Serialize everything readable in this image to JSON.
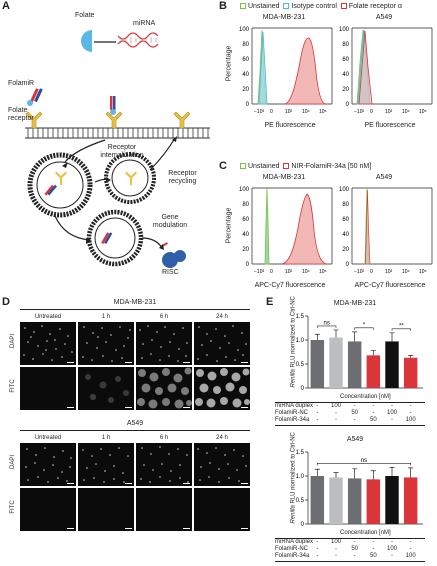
{
  "panels": {
    "A": {
      "label": "A",
      "folate": "Folate",
      "mirna": "miRNA",
      "folamir": "FolamiR",
      "folate_receptor_line1": "Folate",
      "folate_receptor_line2": "receptor",
      "internalization_line1": "Receptor",
      "internalization_line2": "internalization",
      "recycling_line1": "Receptor",
      "recycling_line2": "recycling",
      "gene_line1": "Gene",
      "gene_line2": "modulation",
      "risc": "RISC"
    },
    "B": {
      "label": "B",
      "legend": [
        "Unstained",
        "Isotype control",
        "Folate receptor α"
      ],
      "legend_colors": [
        "#7cc242",
        "#46b7e6",
        "#d9353b"
      ],
      "titles": [
        "MDA-MB-231",
        "A549"
      ],
      "ylabel": "Percentage",
      "xlabel": "PE fluorescence",
      "yticks": [
        "0",
        "20",
        "40",
        "60",
        "80",
        "100"
      ],
      "xticks": [
        "−10³",
        "0",
        "10³",
        "10⁴",
        "10⁵"
      ]
    },
    "C": {
      "label": "C",
      "legend": [
        "Unstained",
        "NIR-FolamiR-34a [50 nM]"
      ],
      "legend_colors": [
        "#7cc242",
        "#d9353b"
      ],
      "titles": [
        "MDA-MB-231",
        "A549"
      ],
      "ylabel": "Percentage",
      "xlabel": "APC-Cy7 fluorescence",
      "yticks": [
        "0",
        "20",
        "40",
        "60",
        "80",
        "100"
      ],
      "xticks": [
        "−10³",
        "0",
        "10³",
        "10⁴",
        "10⁵"
      ]
    },
    "D": {
      "label": "D",
      "grids": [
        {
          "title": "MDA-MB-231",
          "columns": [
            "Untreated",
            "1 h",
            "6 h",
            "24 h"
          ],
          "rows": [
            "DAPI",
            "FITC"
          ]
        },
        {
          "title": "A549",
          "columns": [
            "Untreated",
            "1 h",
            "6 h",
            "24 h"
          ],
          "rows": [
            "DAPI",
            "FITC"
          ]
        }
      ]
    },
    "E": {
      "label": "E",
      "ylabel_italic": "Renilla",
      "ylabel_rest": " RLU normalized to Ctrl-NC",
      "xlabel": "Concentration [nM]",
      "row_labels": [
        "miRNA duplex",
        "FolamiR-NC",
        "FolamiR-34a"
      ],
      "charts": [
        {
          "title": "MDA-MB-231",
          "ylim": [
            0,
            1.5
          ],
          "yticks": [
            "0",
            "0.5",
            "1.0",
            "1.5"
          ],
          "values": [
            1.0,
            1.05,
            0.97,
            0.68,
            0.97,
            0.63
          ],
          "errors": [
            0.12,
            0.16,
            0.2,
            0.1,
            0.18,
            0.05
          ],
          "colors": [
            "#6d6e71",
            "#bcbec0",
            "#6d6e71",
            "#d9353b",
            "#111111",
            "#d9353b"
          ],
          "brackets": [
            {
              "from": 0,
              "to": 1,
              "text": "ns"
            },
            {
              "from": 2,
              "to": 3,
              "text": "*"
            },
            {
              "from": 4,
              "to": 5,
              "text": "**"
            }
          ],
          "table": [
            [
              "-",
              "100",
              "-",
              "-",
              "-",
              "-"
            ],
            [
              "-",
              "-",
              "50",
              "-",
              "100",
              "-"
            ],
            [
              "-",
              "-",
              "-",
              "50",
              "-",
              "100"
            ]
          ]
        },
        {
          "title": "A549",
          "ylim": [
            0,
            1.5
          ],
          "yticks": [
            "0",
            "0.5",
            "1.0",
            "1.5"
          ],
          "values": [
            1.0,
            0.97,
            0.95,
            0.93,
            1.0,
            0.97
          ],
          "errors": [
            0.14,
            0.1,
            0.2,
            0.18,
            0.18,
            0.2
          ],
          "colors": [
            "#6d6e71",
            "#bcbec0",
            "#6d6e71",
            "#d9353b",
            "#111111",
            "#d9353b"
          ],
          "brackets": [
            {
              "from": 0,
              "to": 5,
              "text": "ns"
            }
          ],
          "table": [
            [
              "-",
              "100",
              "-",
              "-",
              "-",
              "-"
            ],
            [
              "-",
              "-",
              "50",
              "-",
              "100",
              "-"
            ],
            [
              "-",
              "-",
              "-",
              "50",
              "-",
              "100"
            ]
          ]
        }
      ]
    }
  },
  "chart_data": [
    {
      "type": "area",
      "title": "MDA-MB-231",
      "xlabel": "PE fluorescence",
      "ylabel": "Percentage",
      "ylim": [
        0,
        100
      ],
      "x_scale": "biexponential",
      "series": [
        {
          "name": "Unstained",
          "peak_x": "0",
          "peak_y": 100
        },
        {
          "name": "Isotype control",
          "peak_x": "0",
          "peak_y": 97
        },
        {
          "name": "Folate receptor α",
          "peak_x": "10⁴",
          "peak_y": 84
        }
      ]
    },
    {
      "type": "area",
      "title": "A549",
      "xlabel": "PE fluorescence",
      "ylabel": "Percentage",
      "ylim": [
        0,
        100
      ],
      "x_scale": "biexponential",
      "series": [
        {
          "name": "Unstained",
          "peak_x": "0",
          "peak_y": 100
        },
        {
          "name": "Isotype control",
          "peak_x": "0",
          "peak_y": 100
        },
        {
          "name": "Folate receptor α",
          "peak_x": "0",
          "peak_y": 100
        }
      ]
    },
    {
      "type": "area",
      "title": "MDA-MB-231",
      "xlabel": "APC-Cy7 fluorescence",
      "ylabel": "Percentage",
      "ylim": [
        0,
        100
      ],
      "x_scale": "biexponential",
      "series": [
        {
          "name": "Unstained",
          "peak_x": "0",
          "peak_y": 100
        },
        {
          "name": "NIR-FolamiR-34a [50 nM]",
          "peak_x": "10⁴",
          "peak_y": 90
        }
      ]
    },
    {
      "type": "area",
      "title": "A549",
      "xlabel": "APC-Cy7 fluorescence",
      "ylabel": "Percentage",
      "ylim": [
        0,
        100
      ],
      "x_scale": "biexponential",
      "series": [
        {
          "name": "Unstained",
          "peak_x": "0",
          "peak_y": 100
        },
        {
          "name": "NIR-FolamiR-34a [50 nM]",
          "peak_x": "0",
          "peak_y": 100
        }
      ]
    },
    {
      "type": "bar",
      "title": "MDA-MB-231",
      "xlabel": "Concentration [nM]",
      "ylabel": "Renilla RLU normalized to Ctrl-NC",
      "ylim": [
        0,
        1.5
      ],
      "values": [
        1.0,
        1.05,
        0.97,
        0.68,
        0.97,
        0.63
      ]
    },
    {
      "type": "bar",
      "title": "A549",
      "xlabel": "Concentration [nM]",
      "ylabel": "Renilla RLU normalized to Ctrl-NC",
      "ylim": [
        0,
        1.5
      ],
      "values": [
        1.0,
        0.97,
        0.95,
        0.93,
        1.0,
        0.97
      ]
    }
  ]
}
